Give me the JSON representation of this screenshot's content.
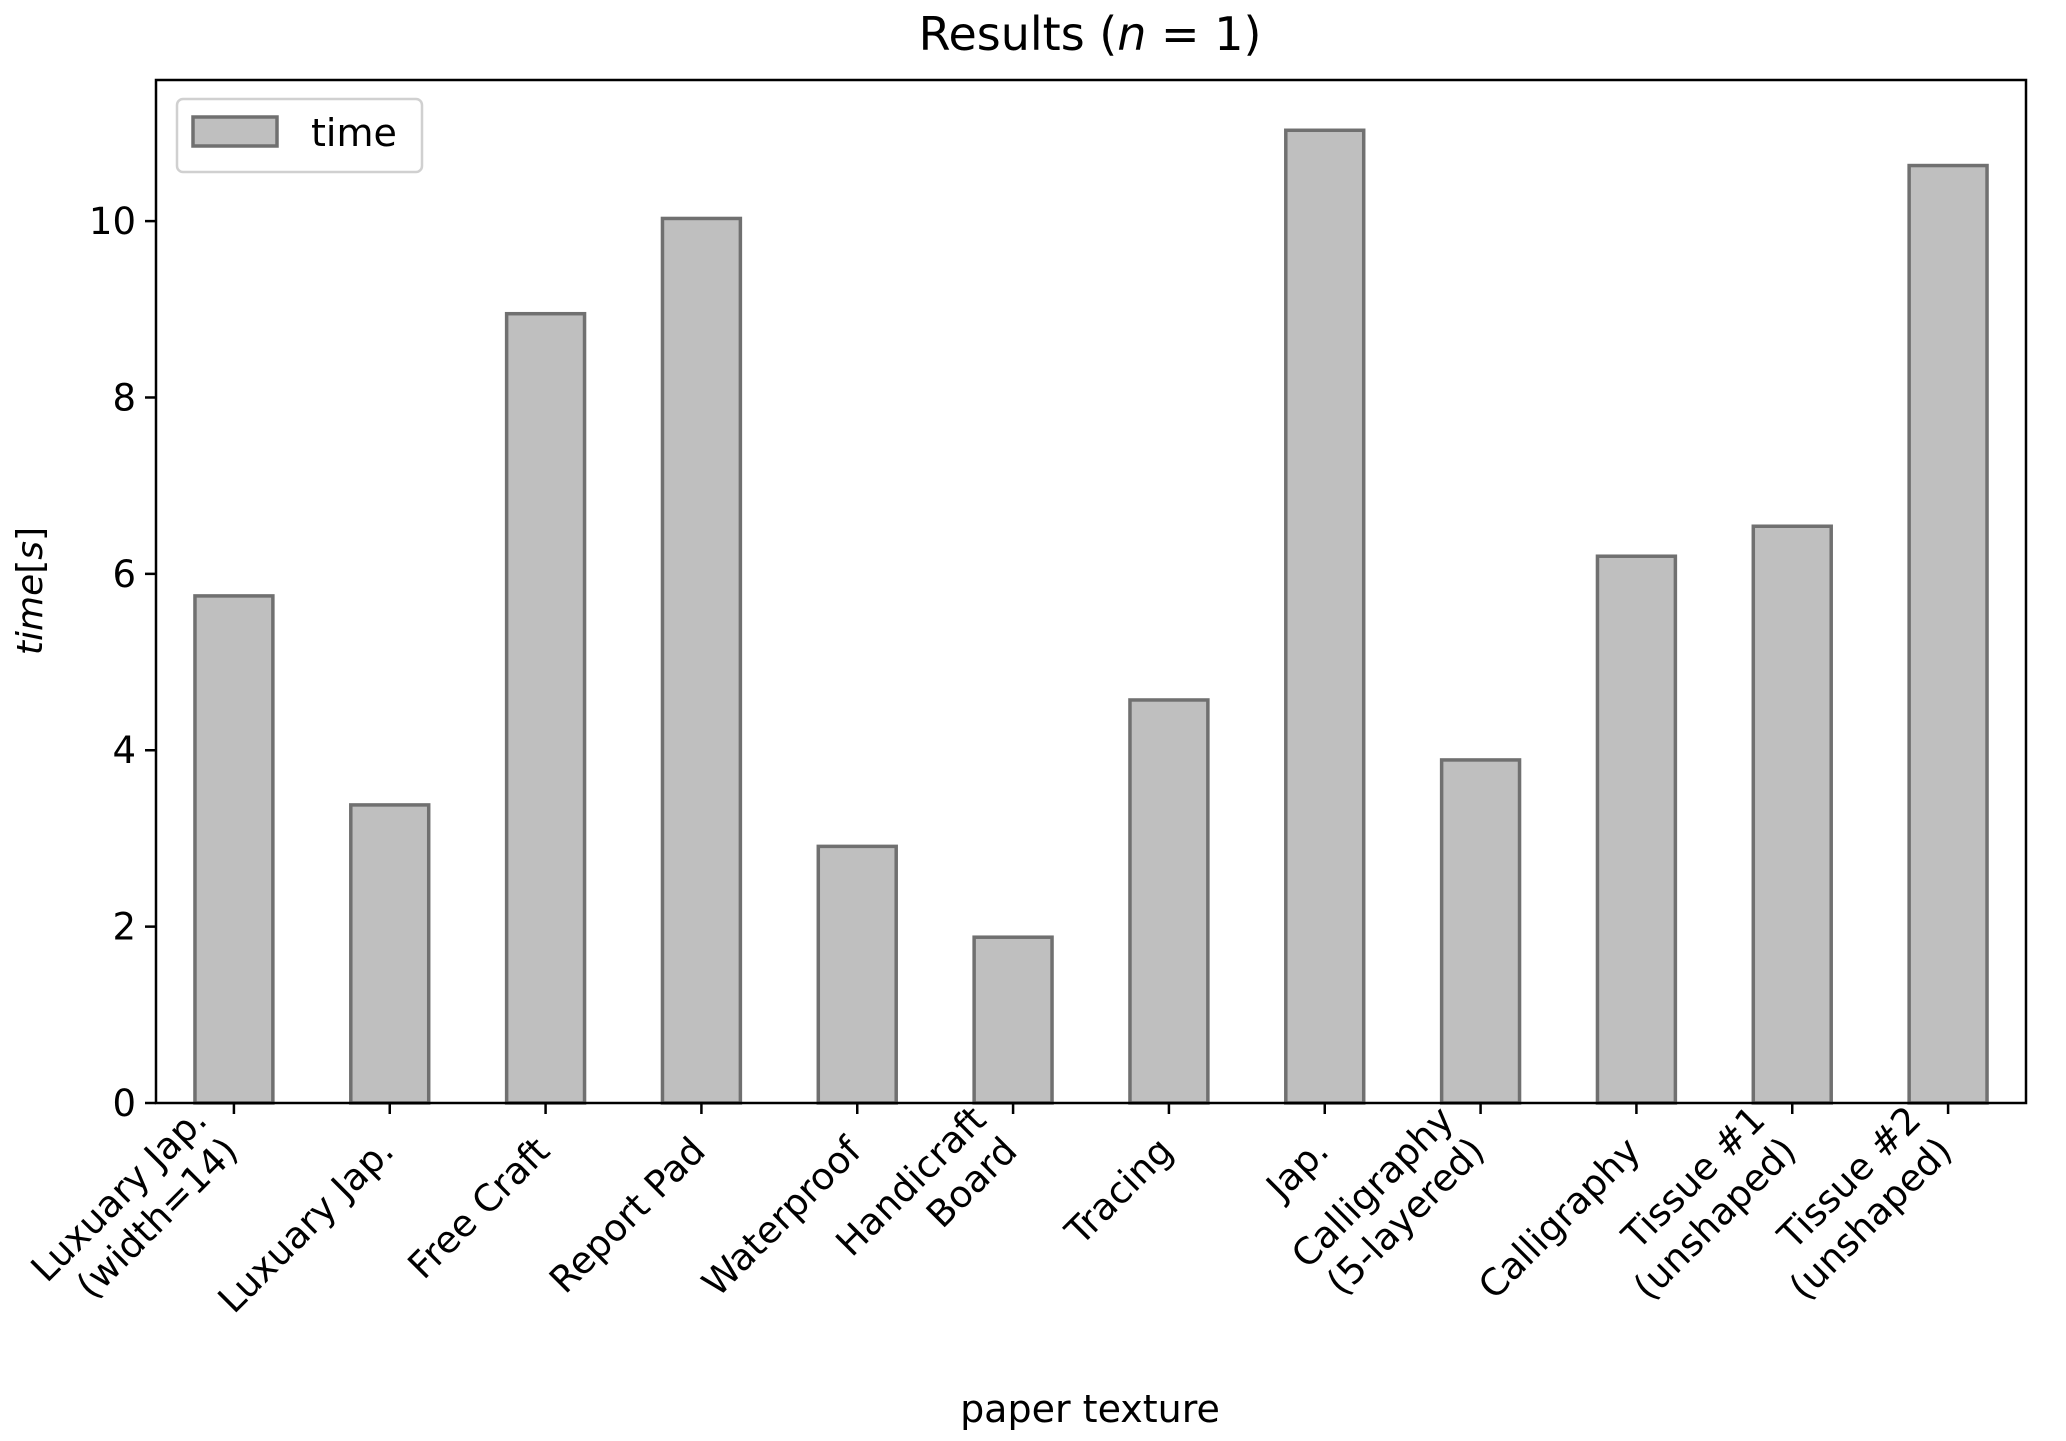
{
  "chart_data": {
    "type": "bar",
    "title": "Results (n = 1)",
    "title_parts": {
      "prefix": "Results (",
      "var": "n",
      "op": " = ",
      "value": "1",
      "suffix": ")"
    },
    "xlabel": "paper texture",
    "ylabel": "time[s]",
    "ylabel_parts": {
      "italic": "time",
      "open": "[",
      "italic_unit": "s",
      "close": "]"
    },
    "categories": [
      [
        "Luxuary Jap.",
        "(width=14)"
      ],
      [
        "Luxuary Jap."
      ],
      [
        "Free Craft"
      ],
      [
        "Report Pad"
      ],
      [
        "Waterproof"
      ],
      [
        "Handicraft",
        "Board"
      ],
      [
        "Tracing"
      ],
      [
        "Jap."
      ],
      [
        "Calligraphy",
        "(5-layered)"
      ],
      [
        "Calligraphy"
      ],
      [
        "Tissue #1",
        "(unshaped)"
      ],
      [
        "Tissue #2",
        "(unshaped)"
      ]
    ],
    "series": [
      {
        "name": "time",
        "values": [
          5.75,
          3.38,
          8.95,
          10.03,
          2.91,
          1.88,
          4.57,
          11.03,
          3.89,
          6.2,
          6.54,
          10.63
        ]
      }
    ],
    "ylim": [
      0,
      11.6
    ],
    "yticks": [
      0,
      2,
      4,
      6,
      8,
      10
    ],
    "grid": false,
    "legend_position": "top-left",
    "colors": {
      "bar_fill": "#bfbfbf",
      "bar_edge": "#707070",
      "axis": "#000000"
    }
  }
}
